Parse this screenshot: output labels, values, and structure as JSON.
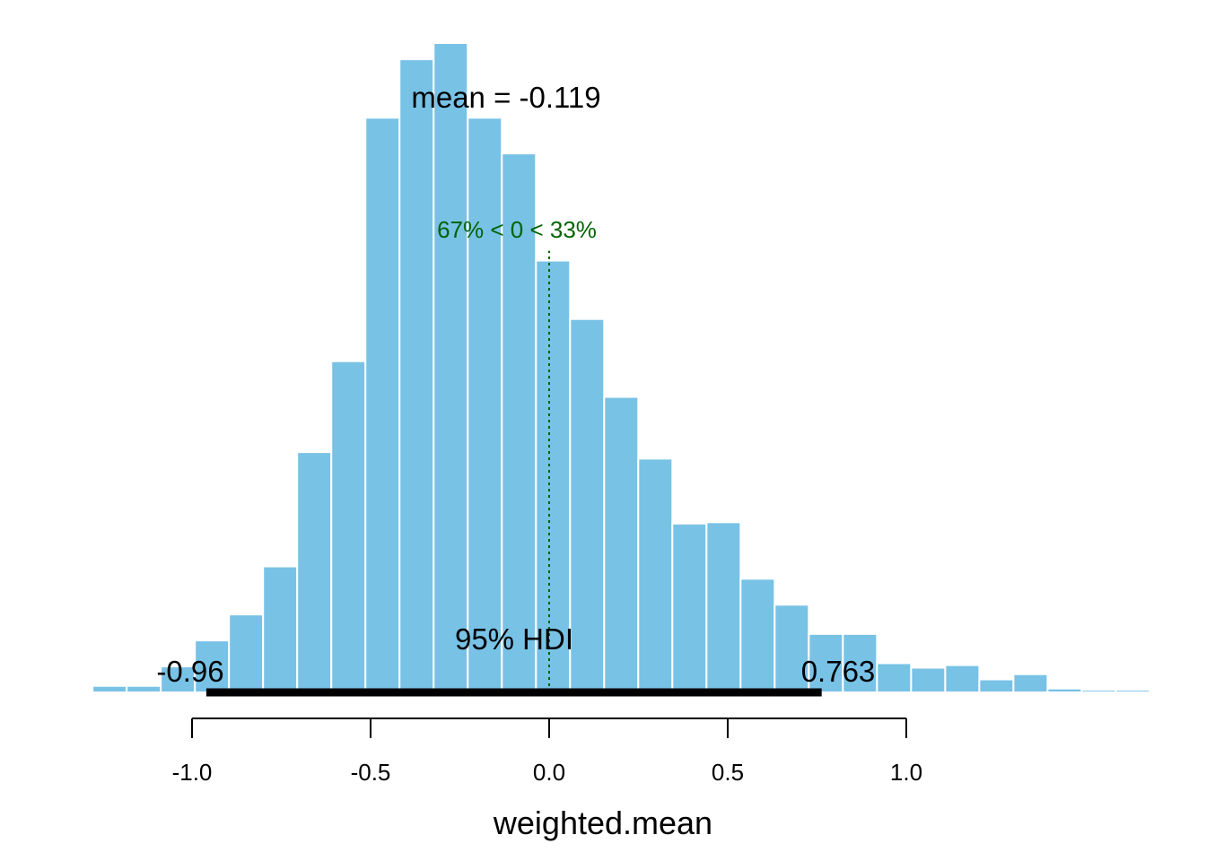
{
  "chart_data": {
    "type": "bar",
    "xlabel": "weighted.mean",
    "xticks": [
      -1.0,
      -0.5,
      0.0,
      0.5,
      1.0
    ],
    "xtick_labels": [
      "-1.0",
      "-0.5",
      "0.0",
      "0.5",
      "1.0"
    ],
    "bin_width": 0.0955,
    "bins": [
      {
        "x0": -1.374,
        "height": 0.002
      },
      {
        "x0": -1.2785,
        "height": 0.01
      },
      {
        "x0": -1.183,
        "height": 0.01
      },
      {
        "x0": -1.0875,
        "height": 0.04
      },
      {
        "x0": -0.992,
        "height": 0.08
      },
      {
        "x0": -0.8965,
        "height": 0.12
      },
      {
        "x0": -0.801,
        "height": 0.194
      },
      {
        "x0": -0.7055,
        "height": 0.37
      },
      {
        "x0": -0.61,
        "height": 0.51
      },
      {
        "x0": -0.5145,
        "height": 0.885
      },
      {
        "x0": -0.419,
        "height": 0.975
      },
      {
        "x0": -0.3235,
        "height": 1.0
      },
      {
        "x0": -0.228,
        "height": 0.885
      },
      {
        "x0": -0.1325,
        "height": 0.83
      },
      {
        "x0": -0.037,
        "height": 0.665
      },
      {
        "x0": 0.0585,
        "height": 0.575
      },
      {
        "x0": 0.154,
        "height": 0.455
      },
      {
        "x0": 0.2495,
        "height": 0.36
      },
      {
        "x0": 0.345,
        "height": 0.26
      },
      {
        "x0": 0.4405,
        "height": 0.262
      },
      {
        "x0": 0.536,
        "height": 0.175
      },
      {
        "x0": 0.6315,
        "height": 0.135
      },
      {
        "x0": 0.727,
        "height": 0.09
      },
      {
        "x0": 0.8225,
        "height": 0.09
      },
      {
        "x0": 0.918,
        "height": 0.045
      },
      {
        "x0": 1.0135,
        "height": 0.038
      },
      {
        "x0": 1.109,
        "height": 0.042
      },
      {
        "x0": 1.2045,
        "height": 0.02
      },
      {
        "x0": 1.3,
        "height": 0.028
      },
      {
        "x0": 1.3955,
        "height": 0.006
      },
      {
        "x0": 1.491,
        "height": 0.004
      },
      {
        "x0": 1.5865,
        "height": 0.004
      },
      {
        "x0": 1.682,
        "height": 0.002
      }
    ],
    "mean_label": "mean = -0.119",
    "comp_label": "67% < 0 < 33%",
    "comp_value": 0,
    "comp_line_height": 0.68,
    "hdi_label": "95% HDI",
    "hdi_low": -0.96,
    "hdi_high": 0.763,
    "hdi_low_label": "-0.96",
    "hdi_high_label": "0.763",
    "colors": {
      "bar": "#78C2E6",
      "bar_edge": "#ffffff",
      "comp": "#006400",
      "hdi": "#000000",
      "axis": "#000000"
    }
  }
}
